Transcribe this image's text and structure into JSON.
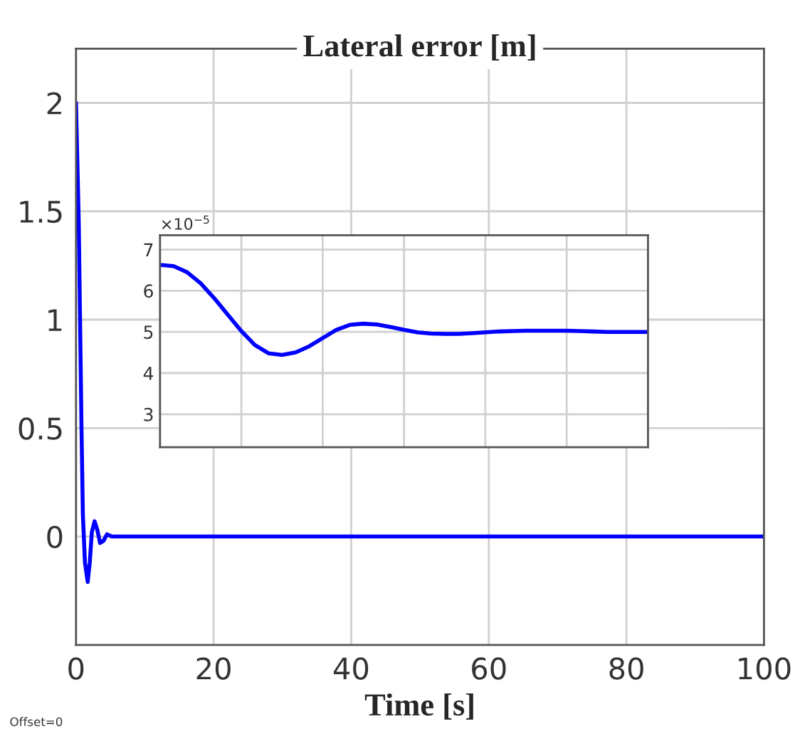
{
  "chart_data": [
    {
      "type": "line",
      "title": "Lateral error [m]",
      "xlabel": "Time [s]",
      "annotations": [
        "Offset=0"
      ],
      "series": [
        {
          "color": "#0000ff",
          "x": [
            0,
            0.4,
            0.8,
            1.0,
            1.3,
            1.7,
            2.0,
            2.3,
            2.7,
            3.1,
            3.5,
            4.0,
            4.5,
            5.2,
            7,
            100
          ],
          "values": [
            2,
            1.45,
            0.5,
            0.1,
            -0.12,
            -0.21,
            -0.12,
            0.02,
            0.07,
            0.03,
            -0.03,
            -0.02,
            0.01,
            0,
            0,
            0
          ]
        }
      ],
      "xlim": [
        0,
        100
      ],
      "ylim": [
        -0.5,
        2.25
      ],
      "xticks": [
        0,
        20,
        40,
        60,
        80,
        100
      ],
      "yticks": [
        0,
        0.5,
        1,
        1.5,
        2
      ],
      "grid": true
    },
    {
      "type": "line",
      "annotations": [
        "×10$^{−5}$"
      ],
      "tick_labels": "y",
      "categories": [
        null,
        null,
        null,
        null,
        null,
        null,
        null,
        null,
        null,
        null,
        null,
        null,
        null,
        null,
        null,
        null,
        null,
        null,
        null,
        null,
        null,
        null,
        null,
        null,
        null,
        null,
        null,
        null,
        null,
        null,
        null,
        null,
        null,
        null,
        null,
        null,
        null
      ],
      "series": [
        {
          "color": "#0000ff",
          "values": [
            6.63,
            6.6,
            6.45,
            6.18,
            5.82,
            5.42,
            5.02,
            4.68,
            4.48,
            4.44,
            4.5,
            4.65,
            4.85,
            5.05,
            5.17,
            5.2,
            5.18,
            5.12,
            5.05,
            4.99,
            4.96,
            4.95,
            4.95,
            4.97,
            4.99,
            5.01,
            5.02,
            5.03,
            5.03,
            5.03,
            5.03,
            5.02,
            5.01,
            5.0,
            5.0,
            5.0,
            5.0
          ]
        }
      ],
      "ylim": [
        2.2,
        7.35
      ],
      "yticks": [
        3,
        4,
        5,
        6,
        7
      ],
      "grid": true
    }
  ]
}
